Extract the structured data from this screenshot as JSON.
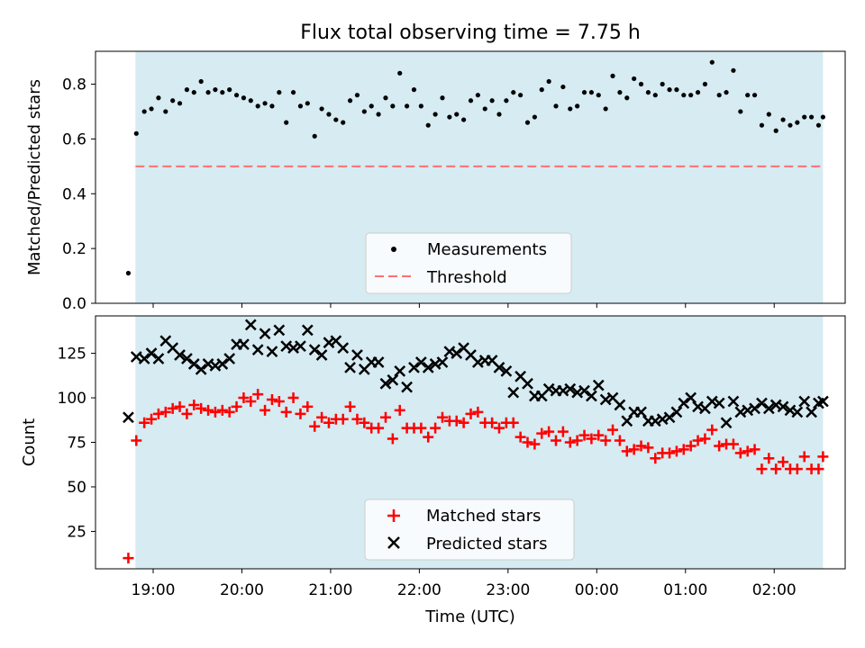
{
  "chart_data": [
    {
      "type": "scatter",
      "title": "Flux total observing time = 7.75 h",
      "ylabel": "Matched/Predicted stars",
      "xlabel": "",
      "ylim": [
        0,
        0.92
      ],
      "yticks": [
        0.0,
        0.2,
        0.4,
        0.6,
        0.8
      ],
      "ytick_labels": [
        "0.0",
        "0.2",
        "0.4",
        "0.6",
        "0.8"
      ],
      "xrange_hours": [
        18.35,
        26.8
      ],
      "shaded_span_hours": [
        18.8,
        26.55
      ],
      "threshold": 0.5,
      "legend": {
        "placement": "lower center",
        "entries": [
          "Measurements",
          "Threshold"
        ]
      },
      "series": [
        {
          "name": "Measurements",
          "marker": "dot",
          "color": "#000000",
          "x_hours": [
            18.72,
            18.81,
            18.9,
            18.98,
            19.06,
            19.14,
            19.22,
            19.3,
            19.38,
            19.46,
            19.54,
            19.62,
            19.7,
            19.78,
            19.86,
            19.94,
            20.02,
            20.1,
            20.18,
            20.26,
            20.34,
            20.42,
            20.5,
            20.58,
            20.66,
            20.74,
            20.82,
            20.9,
            20.98,
            21.06,
            21.14,
            21.22,
            21.3,
            21.38,
            21.46,
            21.54,
            21.62,
            21.7,
            21.78,
            21.86,
            21.94,
            22.02,
            22.1,
            22.18,
            22.26,
            22.34,
            22.42,
            22.5,
            22.58,
            22.66,
            22.74,
            22.82,
            22.9,
            22.98,
            23.06,
            23.14,
            23.22,
            23.3,
            23.38,
            23.46,
            23.54,
            23.62,
            23.7,
            23.78,
            23.86,
            23.94,
            24.02,
            24.1,
            24.18,
            24.26,
            24.34,
            24.42,
            24.5,
            24.58,
            24.66,
            24.74,
            24.82,
            24.9,
            24.98,
            25.06,
            25.14,
            25.22,
            25.3,
            25.38,
            25.46,
            25.54,
            25.62,
            25.7,
            25.78,
            25.86,
            25.94,
            26.02,
            26.1,
            26.18,
            26.26,
            26.34,
            26.42,
            26.5,
            26.55
          ],
          "values": [
            0.11,
            0.62,
            0.7,
            0.71,
            0.75,
            0.7,
            0.74,
            0.73,
            0.78,
            0.77,
            0.81,
            0.77,
            0.78,
            0.77,
            0.78,
            0.76,
            0.75,
            0.74,
            0.72,
            0.73,
            0.72,
            0.77,
            0.66,
            0.77,
            0.72,
            0.73,
            0.61,
            0.71,
            0.69,
            0.67,
            0.66,
            0.74,
            0.76,
            0.7,
            0.72,
            0.69,
            0.75,
            0.72,
            0.84,
            0.72,
            0.78,
            0.72,
            0.65,
            0.69,
            0.75,
            0.68,
            0.69,
            0.67,
            0.74,
            0.76,
            0.71,
            0.74,
            0.69,
            0.74,
            0.77,
            0.76,
            0.66,
            0.68,
            0.78,
            0.81,
            0.72,
            0.79,
            0.71,
            0.72,
            0.77,
            0.77,
            0.76,
            0.71,
            0.83,
            0.77,
            0.75,
            0.82,
            0.8,
            0.77,
            0.76,
            0.8,
            0.78,
            0.78,
            0.76,
            0.76,
            0.77,
            0.8,
            0.88,
            0.76,
            0.77,
            0.85,
            0.7,
            0.76,
            0.76,
            0.65,
            0.69,
            0.63,
            0.67,
            0.65,
            0.66,
            0.68,
            0.68,
            0.65,
            0.68
          ]
        },
        {
          "name": "Threshold",
          "style": "dashed line",
          "color": "#ff7070",
          "values": [
            0.5
          ]
        }
      ]
    },
    {
      "type": "scatter",
      "title": "",
      "ylabel": "Count",
      "xlabel": "Time (UTC)",
      "ylim": [
        4,
        146
      ],
      "yticks": [
        25,
        50,
        75,
        100,
        125
      ],
      "ytick_labels": [
        "25",
        "50",
        "75",
        "100",
        "125"
      ],
      "xticks_hours": [
        19,
        20,
        21,
        22,
        23,
        24,
        25,
        26
      ],
      "xtick_labels": [
        "19:00",
        "20:00",
        "21:00",
        "22:00",
        "23:00",
        "00:00",
        "01:00",
        "02:00"
      ],
      "xrange_hours": [
        18.35,
        26.8
      ],
      "shaded_span_hours": [
        18.8,
        26.55
      ],
      "legend": {
        "placement": "lower center",
        "entries": [
          "Matched stars",
          "Predicted stars"
        ]
      },
      "series": [
        {
          "name": "Matched stars",
          "marker": "plus",
          "color": "#ff0000",
          "x_hours": [
            18.72,
            18.81,
            18.9,
            18.98,
            19.06,
            19.14,
            19.22,
            19.3,
            19.38,
            19.46,
            19.54,
            19.62,
            19.7,
            19.78,
            19.86,
            19.94,
            20.02,
            20.1,
            20.18,
            20.26,
            20.34,
            20.42,
            20.5,
            20.58,
            20.66,
            20.74,
            20.82,
            20.9,
            20.98,
            21.06,
            21.14,
            21.22,
            21.3,
            21.38,
            21.46,
            21.54,
            21.62,
            21.7,
            21.78,
            21.86,
            21.94,
            22.02,
            22.1,
            22.18,
            22.26,
            22.34,
            22.42,
            22.5,
            22.58,
            22.66,
            22.74,
            22.82,
            22.9,
            22.98,
            23.06,
            23.14,
            23.22,
            23.3,
            23.38,
            23.46,
            23.54,
            23.62,
            23.7,
            23.78,
            23.86,
            23.94,
            24.02,
            24.1,
            24.18,
            24.26,
            24.34,
            24.42,
            24.5,
            24.58,
            24.66,
            24.74,
            24.82,
            24.9,
            24.98,
            25.06,
            25.14,
            25.22,
            25.3,
            25.38,
            25.46,
            25.54,
            25.62,
            25.7,
            25.78,
            25.86,
            25.94,
            26.02,
            26.1,
            26.18,
            26.26,
            26.34,
            26.42,
            26.5,
            26.55
          ],
          "values": [
            10,
            76,
            86,
            88,
            91,
            92,
            94,
            95,
            91,
            96,
            94,
            93,
            92,
            93,
            92,
            95,
            100,
            98,
            102,
            93,
            99,
            98,
            92,
            100,
            91,
            95,
            84,
            89,
            86,
            88,
            88,
            95,
            88,
            86,
            83,
            83,
            89,
            77,
            93,
            83,
            83,
            83,
            78,
            83,
            89,
            87,
            87,
            86,
            91,
            92,
            86,
            86,
            83,
            86,
            86,
            78,
            75,
            74,
            80,
            81,
            76,
            81,
            75,
            76,
            79,
            77,
            79,
            76,
            82,
            76,
            70,
            71,
            73,
            72,
            66,
            69,
            69,
            70,
            71,
            73,
            76,
            77,
            82,
            73,
            74,
            74,
            69,
            70,
            71,
            60,
            66,
            60,
            64,
            60,
            60,
            67,
            60,
            60,
            67
          ]
        },
        {
          "name": "Predicted stars",
          "marker": "x",
          "color": "#000000",
          "x_hours": [
            18.72,
            18.81,
            18.9,
            18.98,
            19.06,
            19.14,
            19.22,
            19.3,
            19.38,
            19.46,
            19.54,
            19.62,
            19.7,
            19.78,
            19.86,
            19.94,
            20.02,
            20.1,
            20.18,
            20.26,
            20.34,
            20.42,
            20.5,
            20.58,
            20.66,
            20.74,
            20.82,
            20.9,
            20.98,
            21.06,
            21.14,
            21.22,
            21.3,
            21.38,
            21.46,
            21.54,
            21.62,
            21.7,
            21.78,
            21.86,
            21.94,
            22.02,
            22.1,
            22.18,
            22.26,
            22.34,
            22.42,
            22.5,
            22.58,
            22.66,
            22.74,
            22.82,
            22.9,
            22.98,
            23.06,
            23.14,
            23.22,
            23.3,
            23.38,
            23.46,
            23.54,
            23.62,
            23.7,
            23.78,
            23.86,
            23.94,
            24.02,
            24.1,
            24.18,
            24.26,
            24.34,
            24.42,
            24.5,
            24.58,
            24.66,
            24.74,
            24.82,
            24.9,
            24.98,
            25.06,
            25.14,
            25.22,
            25.3,
            25.38,
            25.46,
            25.54,
            25.62,
            25.7,
            25.78,
            25.86,
            25.94,
            26.02,
            26.1,
            26.18,
            26.26,
            26.34,
            26.42,
            26.5,
            26.55
          ],
          "values": [
            89,
            123,
            122,
            125,
            122,
            132,
            128,
            124,
            122,
            119,
            116,
            119,
            118,
            119,
            122,
            130,
            130,
            141,
            127,
            136,
            126,
            138,
            129,
            128,
            129,
            138,
            127,
            124,
            131,
            132,
            128,
            117,
            124,
            116,
            120,
            120,
            108,
            110,
            115,
            106,
            117,
            120,
            117,
            119,
            120,
            126,
            125,
            128,
            124,
            120,
            121,
            121,
            117,
            115,
            103,
            112,
            108,
            101,
            101,
            105,
            104,
            104,
            105,
            103,
            104,
            101,
            107,
            99,
            100,
            96,
            87,
            92,
            92,
            87,
            87,
            88,
            89,
            92,
            97,
            100,
            95,
            94,
            98,
            97,
            86,
            98,
            92,
            93,
            94,
            97,
            94,
            96,
            95,
            93,
            92,
            98,
            92,
            97,
            98
          ]
        }
      ]
    }
  ]
}
